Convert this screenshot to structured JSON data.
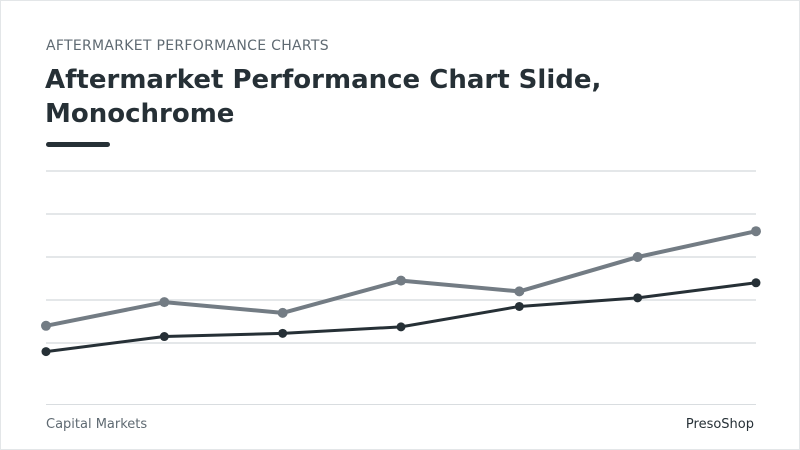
{
  "header": {
    "eyebrow": "AFTERMARKET PERFORMANCE CHARTS",
    "title": "Aftermarket Performance Chart Slide, Monochrome"
  },
  "footer": {
    "left": "Capital Markets",
    "right": "PresoShop"
  },
  "colors": {
    "title": "#263036",
    "muted": "#5f6a72",
    "grid": "#dcdfe2",
    "series_light": "#737c84",
    "series_dark": "#263036"
  },
  "chart_data": {
    "type": "line",
    "x": [
      1,
      2,
      3,
      4,
      5,
      6,
      7
    ],
    "ylim": [
      0,
      100
    ],
    "grid": true,
    "gridlines_y": [
      20,
      40,
      60,
      80,
      100
    ],
    "legend": "none",
    "series": [
      {
        "values": [
          28,
          39,
          34,
          49,
          44,
          60,
          72
        ],
        "color": "#737c84"
      },
      {
        "values": [
          16,
          23,
          24.5,
          27.5,
          37,
          41,
          48
        ],
        "color": "#263036"
      }
    ]
  }
}
